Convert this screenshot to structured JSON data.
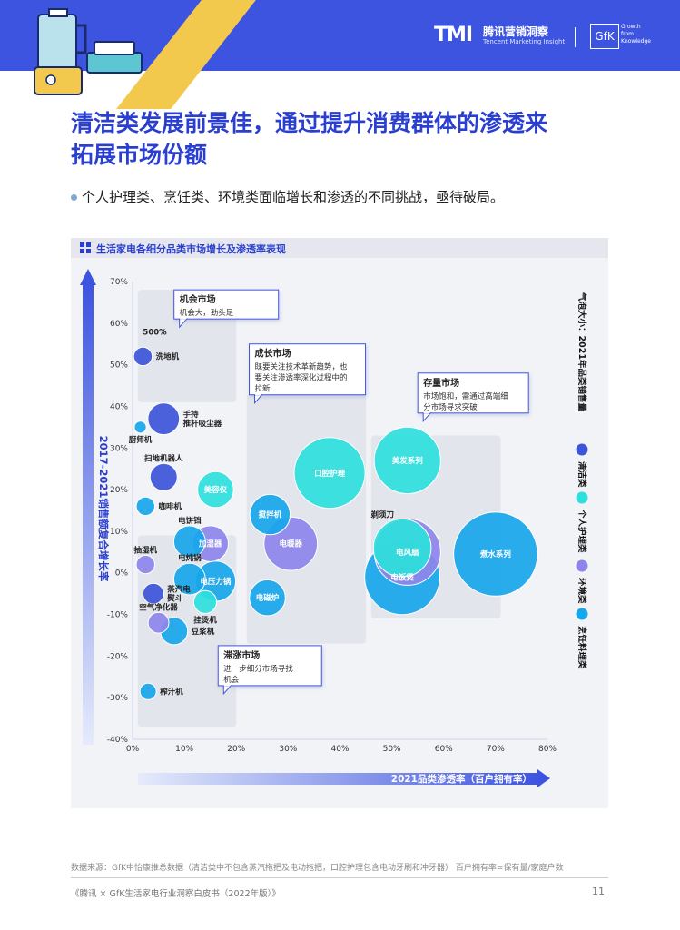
{
  "header": {
    "tmi_logo": "TMI",
    "tmi_name": "腾讯营销洞察",
    "tmi_sub": "Tencent Marketing Insight",
    "gfk_logo": "GfK",
    "gfk_sub": [
      "Growth",
      "from",
      "Knowledge"
    ]
  },
  "title_lines": [
    "清洁类发展前景佳，通过提升消费群体的渗透来",
    "拓展市场份额"
  ],
  "bullet": "个人护理类、烹饪类、环境类面临增长和渗透的不同挑战，亟待破局。",
  "panel_title": "生活家电各细分品类市场增长及渗透率表现",
  "chart_data": {
    "type": "scatter",
    "title": "生活家电各细分品类市场增长及渗透率表现",
    "xlabel": "2021品类渗透率（百户拥有率）",
    "ylabel": "2017-2021销售额复合增长率",
    "size_label": "气泡大小：2021年品类销售量",
    "xlim": [
      0,
      80
    ],
    "ylim": [
      -40,
      70
    ],
    "x_ticks": [
      "0%",
      "10%",
      "20%",
      "30%",
      "40%",
      "50%",
      "60%",
      "70%",
      "80%"
    ],
    "y_ticks": [
      "70%",
      "60%",
      "50%",
      "40%",
      "30%",
      "20%",
      "10%",
      "0%",
      "-10%",
      "-20%",
      "-30%",
      "-40%"
    ],
    "categories": [
      {
        "name": "清洁类",
        "color": "#3c55d8"
      },
      {
        "name": "个人护理类",
        "color": "#2ee0dc"
      },
      {
        "name": "环境类",
        "color": "#8e85ea"
      },
      {
        "name": "烹饪料理类",
        "color": "#17a6ea"
      }
    ],
    "points": [
      {
        "label": "洗地机",
        "x": 2,
        "y": 52,
        "size": 3,
        "cat": "清洁类",
        "pos": "right",
        "note": "500%"
      },
      {
        "label": "手持推杆吸尘器",
        "x": 6,
        "y": 37,
        "size": 6,
        "cat": "清洁类",
        "pos": "right"
      },
      {
        "label": "厨师机",
        "x": 1.5,
        "y": 35,
        "size": 1.5,
        "cat": "烹饪料理类",
        "pos": "below"
      },
      {
        "label": "扫地机器人",
        "x": 6,
        "y": 23,
        "size": 5,
        "cat": "清洁类",
        "pos": "above"
      },
      {
        "label": "美容仪",
        "x": 16,
        "y": 20,
        "size": 7,
        "cat": "个人护理类",
        "pos": "inside"
      },
      {
        "label": "咖啡机",
        "x": 2.5,
        "y": 16,
        "size": 3,
        "cat": "烹饪料理类",
        "pos": "right"
      },
      {
        "label": "电饼铛",
        "x": 11,
        "y": 7.5,
        "size": 6,
        "cat": "烹饪料理类",
        "pos": "above"
      },
      {
        "label": "加湿器",
        "x": 15,
        "y": 7,
        "size": 7,
        "cat": "环境类",
        "pos": "inside"
      },
      {
        "label": "抽湿机",
        "x": 2.5,
        "y": 2,
        "size": 3,
        "cat": "环境类",
        "pos": "above"
      },
      {
        "label": "电炖锅",
        "x": 11,
        "y": -1.5,
        "size": 6,
        "cat": "烹饪料理类",
        "pos": "above"
      },
      {
        "label": "电压力锅",
        "x": 16,
        "y": -2,
        "size": 8,
        "cat": "烹饪料理类",
        "pos": "inside"
      },
      {
        "label": "蒸汽电熨斗",
        "x": 4,
        "y": -5,
        "size": 3.5,
        "cat": "清洁类",
        "pos": "right"
      },
      {
        "label": "挂烫机",
        "x": 14,
        "y": -7,
        "size": 4,
        "cat": "个人护理类",
        "pos": "below"
      },
      {
        "label": "空气净化器",
        "x": 5,
        "y": -12,
        "size": 3.5,
        "cat": "环境类",
        "pos": "above"
      },
      {
        "label": "豆浆机",
        "x": 8,
        "y": -14,
        "size": 5,
        "cat": "烹饪料理类",
        "pos": "right"
      },
      {
        "label": "榨汁机",
        "x": 3,
        "y": -28.5,
        "size": 2.5,
        "cat": "烹饪料理类",
        "pos": "right"
      },
      {
        "label": "搅拌机",
        "x": 26.5,
        "y": 14,
        "size": 8,
        "cat": "烹饪料理类",
        "pos": "inside"
      },
      {
        "label": "电暖器",
        "x": 30.5,
        "y": 7,
        "size": 11,
        "cat": "环境类",
        "pos": "inside"
      },
      {
        "label": "电磁炉",
        "x": 26,
        "y": -6,
        "size": 7,
        "cat": "烹饪料理类",
        "pos": "inside"
      },
      {
        "label": "口腔护理",
        "x": 38,
        "y": 24,
        "size": 15,
        "cat": "个人护理类",
        "pos": "inside"
      },
      {
        "label": "美发系列",
        "x": 53,
        "y": 27,
        "size": 14,
        "cat": "个人护理类",
        "pos": "inside"
      },
      {
        "label": "剃须刀",
        "x": 52,
        "y": 6,
        "size": 12,
        "cat": "个人护理类",
        "pos": "above-left"
      },
      {
        "label": "电风扇",
        "x": 53,
        "y": 5,
        "size": 14,
        "cat": "环境类",
        "pos": "inside"
      },
      {
        "label": "电饭煲",
        "x": 52,
        "y": -1,
        "size": 16,
        "cat": "烹饪料理类",
        "pos": "inside"
      },
      {
        "label": "煮水系列",
        "x": 70,
        "y": 4.5,
        "size": 18,
        "cat": "烹饪料理类",
        "pos": "inside"
      }
    ],
    "annotations": [
      {
        "title": "机会市场",
        "text": [
          "机会大，劲头足"
        ]
      },
      {
        "title": "成长市场",
        "text": [
          "既要关注技术革新趋势，也",
          "要关注渗透率深化过程中的",
          "拉新"
        ]
      },
      {
        "title": "存量市场",
        "text": [
          "市场饱和，需通过高端细",
          "分市场寻求突破"
        ]
      },
      {
        "title": "滞涨市场",
        "text": [
          "进一步细分市场寻找",
          "机会"
        ]
      }
    ]
  },
  "footer": {
    "note": "数据来源：GfK中怡康推总数据（清洁类中不包含蒸汽拖把及电动拖把，口腔护理包含电动牙刷和冲牙器）   百户拥有率=保有量/家庭户数",
    "source": "《腾讯 × GfK生活家电行业洞察白皮书（2022年版）》",
    "page": "11"
  }
}
